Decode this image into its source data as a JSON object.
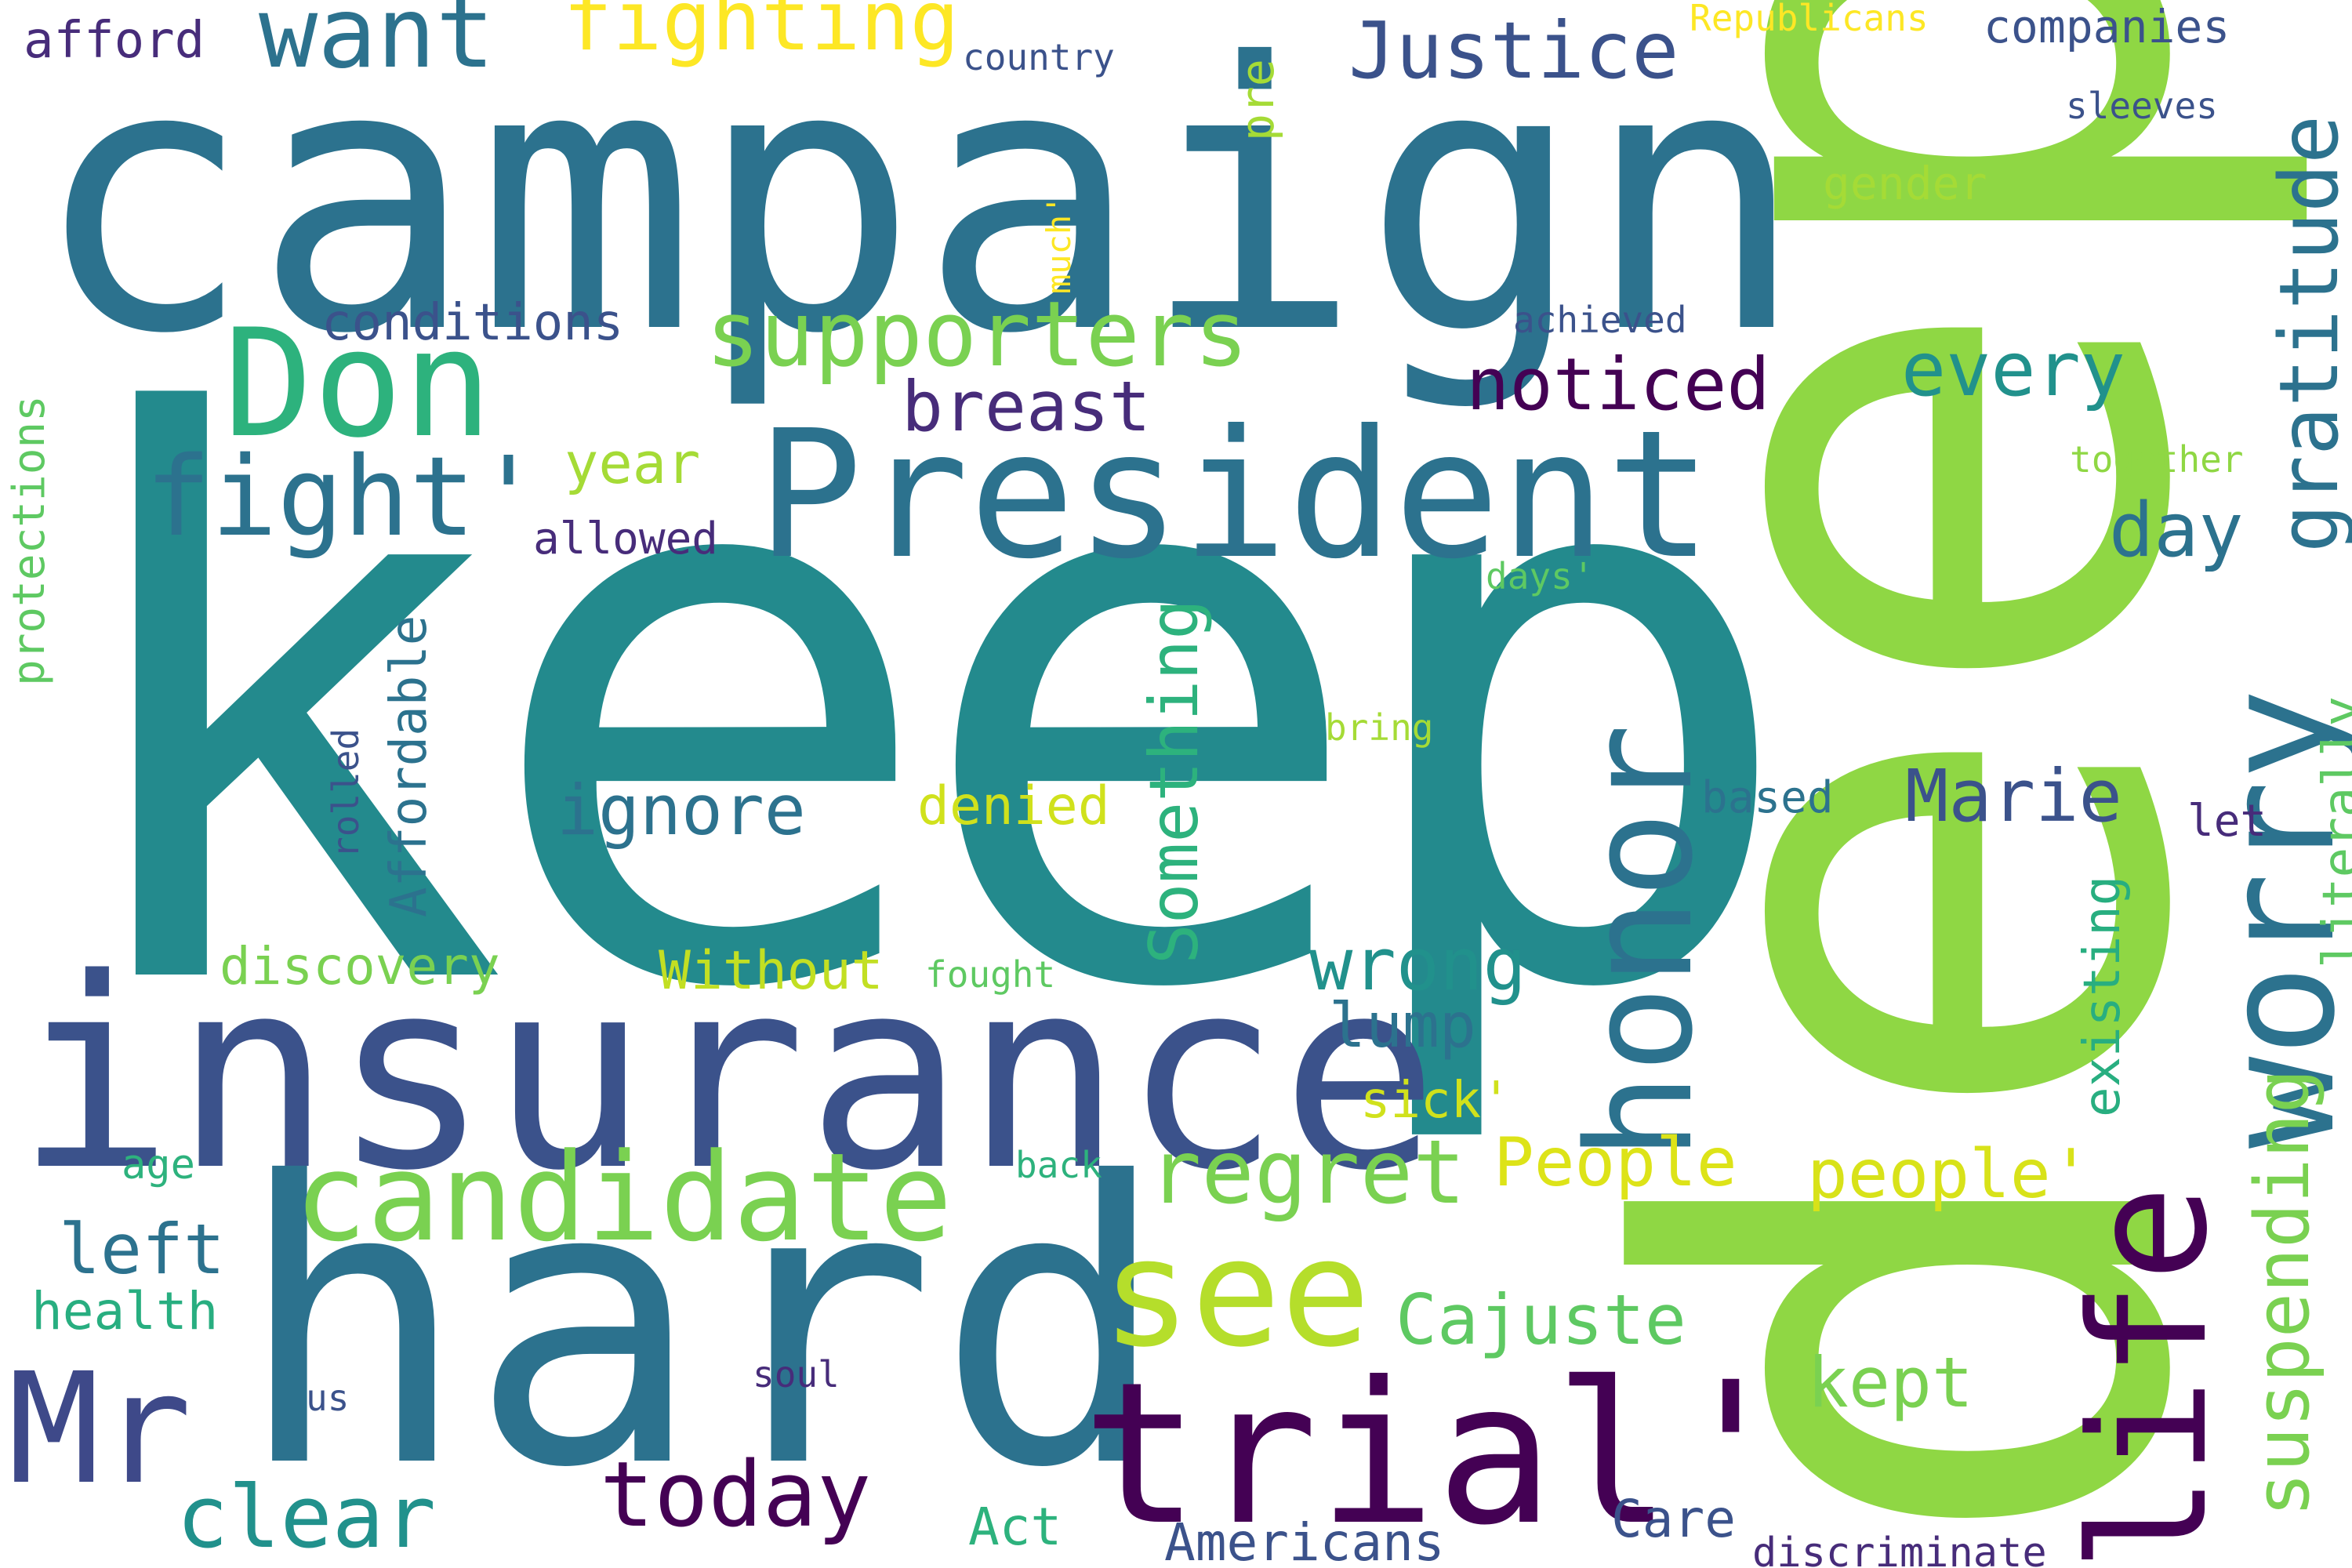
{
  "palette": {
    "purple": "#440154",
    "indigo": "#3b528b",
    "teal": "#2c728e",
    "blue_teal": "#21918c",
    "green": "#28ae80",
    "lime": "#5ec962",
    "yellow_green": "#aadc32",
    "light_green": "#8fd744",
    "yellow": "#fde725"
  },
  "words": [
    "keep",
    "deep",
    "campaign",
    "insurance",
    "hard",
    "President",
    "Don",
    "trial'",
    "honor",
    "worry",
    "life",
    "see",
    "candidate",
    "supporters",
    "Mr",
    "fight'",
    "Justice",
    "want",
    "fighting",
    "gratitude",
    "regret",
    "noticed",
    "every",
    "breast",
    "day",
    "Marie",
    "ignore",
    "wrong",
    "Something",
    "Cajuste",
    "today",
    "clear",
    "suspending",
    "People",
    "people'",
    "kept",
    "Affordable",
    "left",
    "lump",
    "Without",
    "discovery",
    "denied",
    "conditions",
    "year",
    "Americans",
    "Care",
    "Act",
    "health",
    "existing",
    "literally",
    "companies",
    "afford",
    "Republicans",
    "country",
    "pre",
    "sleeves",
    "gender",
    "much'",
    "achieved",
    "protections",
    "allowed",
    "together",
    "days'",
    "bring",
    "rolled",
    "based",
    "let",
    "sick'",
    "age",
    "back",
    "fought",
    "soul",
    "us",
    "discriminate"
  ]
}
